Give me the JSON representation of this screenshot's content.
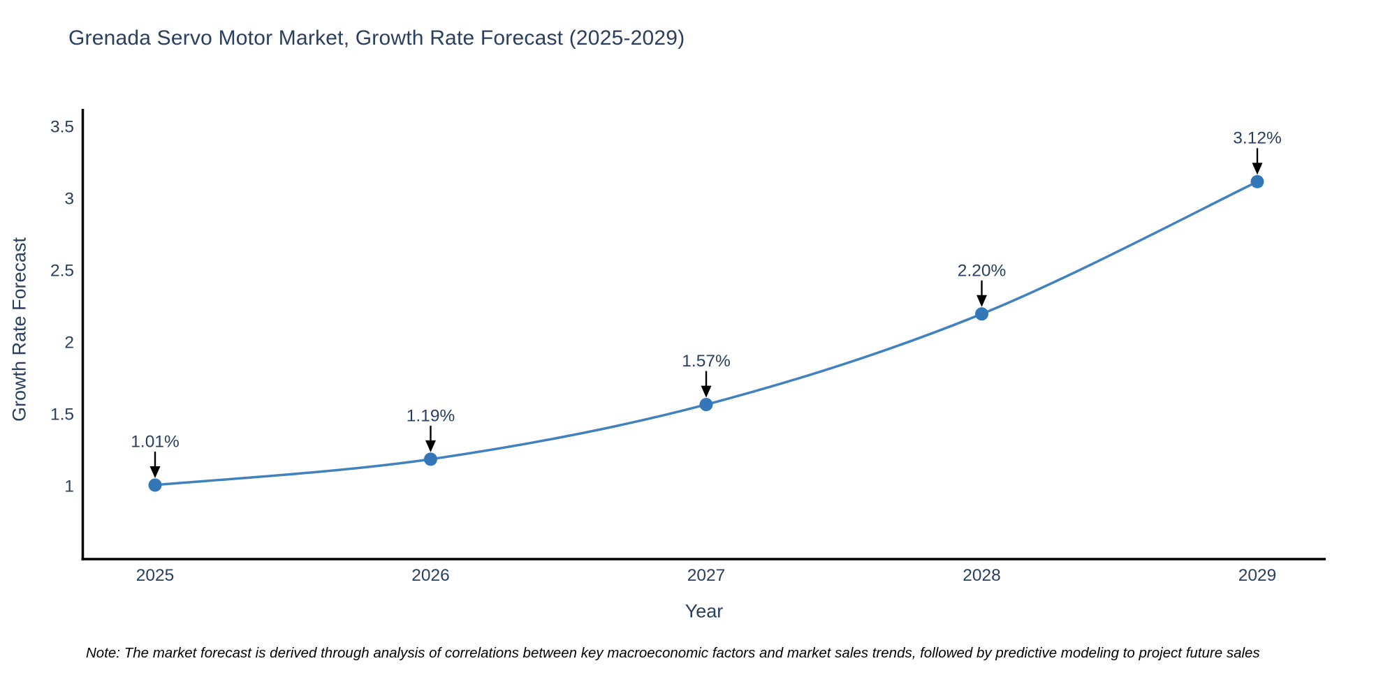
{
  "chart_data": {
    "type": "line",
    "title": "Grenada Servo Motor Market, Growth Rate Forecast (2025-2029)",
    "xlabel": "Year",
    "ylabel": "Growth Rate Forecast",
    "categories": [
      "2025",
      "2026",
      "2027",
      "2028",
      "2029"
    ],
    "series": [
      {
        "name": "Growth Rate Forecast",
        "values": [
          1.01,
          1.19,
          1.57,
          2.2,
          3.12
        ]
      }
    ],
    "point_labels": [
      "1.01%",
      "1.19%",
      "1.57%",
      "2.20%",
      "3.12%"
    ],
    "yticks": [
      1,
      1.5,
      2,
      2.5,
      3,
      3.5
    ],
    "ylim": [
      0.5,
      3.63
    ],
    "grid": false,
    "legend": "none",
    "marker": "circle",
    "annotation_arrows": true,
    "colors": {
      "line": "#4181bd",
      "marker": "#3377b8",
      "text": "#2a3f5f",
      "axis": "#000000",
      "note": "#000000"
    }
  },
  "note": {
    "text": "Note: The market forecast is derived through analysis of correlations between key macroeconomic factors and market sales trends, followed by predictive modeling to project future sales"
  }
}
